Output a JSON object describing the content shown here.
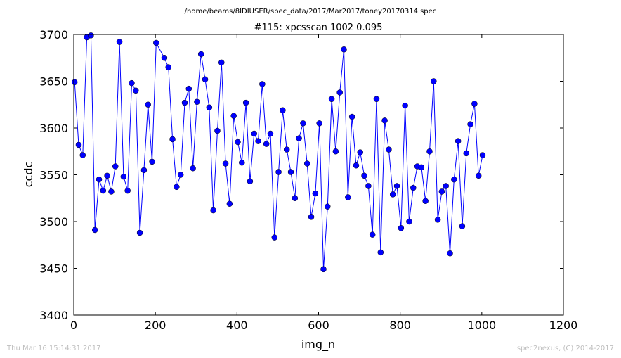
{
  "chart_data": {
    "type": "line",
    "suptitle": "/home/beams/8IDIUSER/spec_data/2017/Mar2017/toney20170314.spec",
    "title": "#115: xpcsscan 1002 0.095",
    "xlabel": "img_n",
    "ylabel": "ccdc",
    "xlim": [
      0,
      1200
    ],
    "ylim": [
      3400,
      3700
    ],
    "xticks": [
      0,
      200,
      400,
      600,
      800,
      1000,
      1200
    ],
    "yticks": [
      3400,
      3450,
      3500,
      3550,
      3600,
      3650,
      3700
    ],
    "grid": false,
    "line_color": "#0000ff",
    "marker": "circle",
    "x": [
      2,
      12,
      22,
      32,
      42,
      52,
      62,
      72,
      82,
      92,
      102,
      112,
      122,
      132,
      142,
      152,
      162,
      172,
      182,
      192,
      202,
      222,
      232,
      242,
      252,
      262,
      272,
      282,
      292,
      302,
      312,
      322,
      332,
      342,
      352,
      362,
      372,
      382,
      392,
      402,
      412,
      422,
      432,
      442,
      452,
      462,
      472,
      482,
      492,
      502,
      512,
      522,
      532,
      542,
      552,
      562,
      572,
      582,
      592,
      602,
      612,
      622,
      632,
      642,
      652,
      662,
      672,
      682,
      692,
      702,
      712,
      722,
      732,
      742,
      752,
      762,
      772,
      782,
      792,
      802,
      812,
      822,
      832,
      842,
      852,
      862,
      872,
      882,
      892,
      902,
      912,
      922,
      932,
      942,
      952,
      962,
      972,
      982,
      992,
      1002
    ],
    "y": [
      3649,
      3582,
      3571,
      3697,
      3699,
      3491,
      3545,
      3533,
      3549,
      3532,
      3559,
      3692,
      3548,
      3533,
      3648,
      3640,
      3488,
      3555,
      3625,
      3564,
      3691,
      3675,
      3665,
      3588,
      3537,
      3550,
      3627,
      3642,
      3557,
      3628,
      3679,
      3652,
      3622,
      3512,
      3597,
      3670,
      3562,
      3519,
      3613,
      3585,
      3563,
      3627,
      3543,
      3594,
      3586,
      3647,
      3583,
      3594,
      3483,
      3553,
      3619,
      3577,
      3553,
      3525,
      3589,
      3605,
      3562,
      3505,
      3530,
      3605,
      3449,
      3516,
      3631,
      3575,
      3638,
      3684,
      3526,
      3612,
      3560,
      3574,
      3549,
      3538,
      3486,
      3631,
      3467,
      3608,
      3577,
      3529,
      3538,
      3493,
      3624,
      3500,
      3536,
      3559,
      3558,
      3522,
      3575,
      3650,
      3502,
      3532,
      3538,
      3466,
      3545,
      3586,
      3495,
      3573,
      3604,
      3626,
      3549,
      3571
    ]
  },
  "footer": {
    "timestamp": "Thu Mar 16 15:14:31 2017",
    "credit": "spec2nexus, (C) 2014-2017"
  }
}
